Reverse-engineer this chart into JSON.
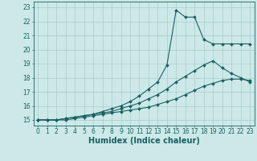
{
  "xlabel": "Humidex (Indice chaleur)",
  "bg_color": "#cce8e8",
  "grid_color": "#aacccc",
  "line_color": "#1a6060",
  "xlim": [
    -0.5,
    23.5
  ],
  "ylim": [
    14.6,
    23.4
  ],
  "xticks": [
    0,
    1,
    2,
    3,
    4,
    5,
    6,
    7,
    8,
    9,
    10,
    11,
    12,
    13,
    14,
    15,
    16,
    17,
    18,
    19,
    20,
    21,
    22,
    23
  ],
  "yticks": [
    15,
    16,
    17,
    18,
    19,
    20,
    21,
    22,
    23
  ],
  "line1_x": [
    0,
    1,
    2,
    3,
    4,
    5,
    6,
    7,
    8,
    9,
    10,
    11,
    12,
    13,
    14,
    15,
    16,
    17,
    18,
    19,
    20,
    21,
    22,
    23
  ],
  "line1_y": [
    15.0,
    15.0,
    15.0,
    15.0,
    15.1,
    15.2,
    15.3,
    15.4,
    15.5,
    15.6,
    15.7,
    15.8,
    15.9,
    16.1,
    16.3,
    16.5,
    16.8,
    17.1,
    17.4,
    17.6,
    17.8,
    17.9,
    17.9,
    17.8
  ],
  "line2_x": [
    0,
    1,
    2,
    3,
    4,
    5,
    6,
    7,
    8,
    9,
    10,
    11,
    12,
    13,
    14,
    15,
    16,
    17,
    18,
    19,
    20,
    21,
    22,
    23
  ],
  "line2_y": [
    15.0,
    15.0,
    15.0,
    15.1,
    15.2,
    15.3,
    15.4,
    15.5,
    15.6,
    15.8,
    16.0,
    16.2,
    16.5,
    16.8,
    17.2,
    17.7,
    18.1,
    18.5,
    18.9,
    19.2,
    18.7,
    18.3,
    18.0,
    17.7
  ],
  "line3_x": [
    0,
    1,
    2,
    3,
    4,
    5,
    6,
    7,
    8,
    9,
    10,
    11,
    12,
    13,
    14,
    15,
    16,
    17,
    18,
    19,
    20,
    21,
    22,
    23
  ],
  "line3_y": [
    15.0,
    15.0,
    15.0,
    15.1,
    15.2,
    15.3,
    15.4,
    15.6,
    15.8,
    16.0,
    16.3,
    16.7,
    17.2,
    17.7,
    18.9,
    22.8,
    22.3,
    22.3,
    20.7,
    20.4,
    20.4,
    20.4,
    20.4,
    20.4
  ],
  "marker": "D",
  "markersize": 2.0,
  "linewidth": 0.8,
  "xlabel_fontsize": 7,
  "tick_fontsize": 5.5
}
